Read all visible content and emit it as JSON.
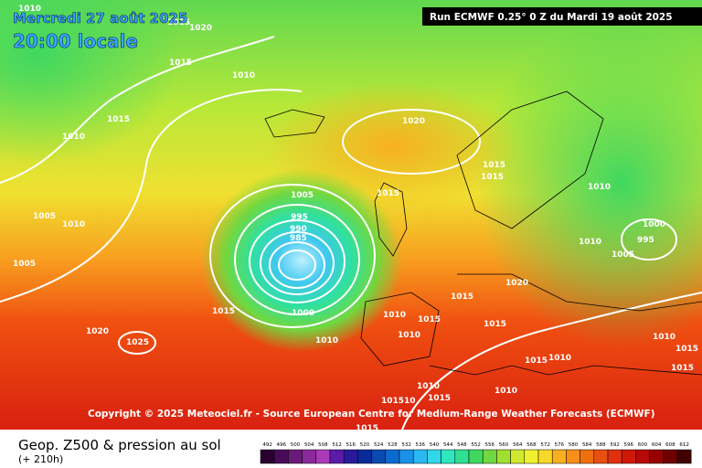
{
  "header": {
    "date": "Mercredi 27 août 2025",
    "time": "20:00 locale",
    "run": "Run ECMWF 0.25° 0 Z du Mardi 19 août 2025"
  },
  "isobar_labels": [
    "1010",
    "1015",
    "1020",
    "1015",
    "1010",
    "1015",
    "1010",
    "1020",
    "1005",
    "1010",
    "1005",
    "1005",
    "995",
    "990",
    "985",
    "1015",
    "1015",
    "1015",
    "1010",
    "1000",
    "995",
    "1010",
    "1005",
    "1020",
    "1015",
    "1015",
    "1000",
    "1010",
    "1015",
    "1015",
    "1010",
    "1010",
    "1020",
    "1025",
    "1010",
    "1015",
    "1015",
    "1010",
    "1010",
    "1010",
    "1015",
    "101510",
    "1015",
    "1015"
  ],
  "copyright": "Copyright © 2025 Meteociel.fr - Source European Centre for Medium-Range Weather Forecasts (ECMWF)",
  "footer": {
    "title": "Geop. Z500 & pression au sol",
    "lead": "(+ 210h)"
  },
  "scale": {
    "labels": [
      "492",
      "496",
      "500",
      "504",
      "508",
      "512",
      "516",
      "520",
      "524",
      "528",
      "532",
      "536",
      "540",
      "544",
      "548",
      "552",
      "556",
      "560",
      "564",
      "568",
      "572",
      "576",
      "580",
      "584",
      "588",
      "592",
      "596",
      "600",
      "604",
      "608",
      "612"
    ],
    "colors": [
      "#2a0030",
      "#4a0a5a",
      "#6a1a7a",
      "#8a2a9a",
      "#aa3aba",
      "#5a1aaa",
      "#2a1a9a",
      "#0a2a9a",
      "#0a4ab0",
      "#0a6ad0",
      "#1a90e8",
      "#2ab8f0",
      "#30d8e8",
      "#30e8c0",
      "#30e090",
      "#40d860",
      "#70d840",
      "#a0e030",
      "#d0e830",
      "#f0f030",
      "#f8d828",
      "#f8b020",
      "#f89018",
      "#f07010",
      "#e85010",
      "#e03010",
      "#d01808",
      "#b80808",
      "#980000",
      "#700000",
      "#400000"
    ]
  }
}
